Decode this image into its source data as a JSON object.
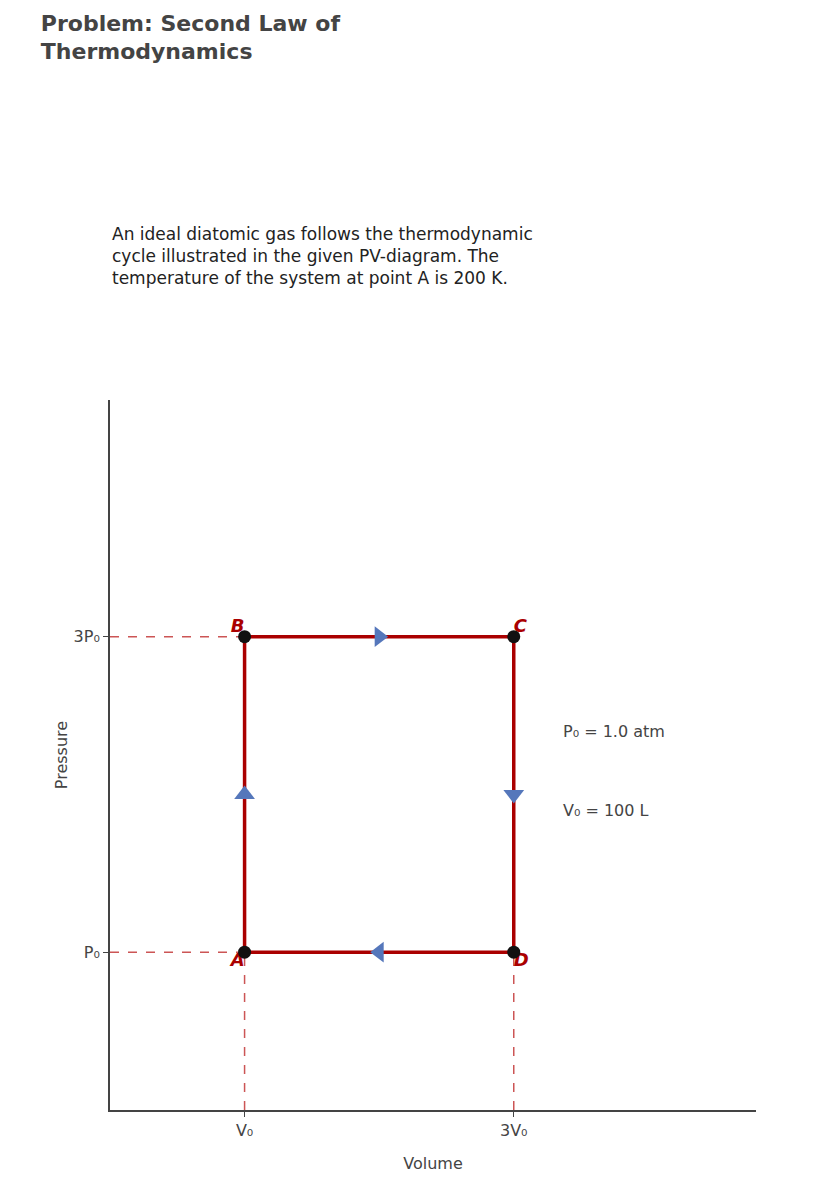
{
  "chart_data": {
    "type": "line",
    "title": [
      "Problem: Second Law of",
      "Thermodynamics"
    ],
    "subtitle": [
      "An ideal diatomic gas follows the thermodynamic",
      "cycle illustrated in the given PV-diagram. The",
      "temperature of the system at point A is 200 K."
    ],
    "x_label": "Volume",
    "y_label": "Pressure",
    "xlim": [
      0.0,
      4.8
    ],
    "ylim": [
      0.0,
      4.5
    ],
    "xticks": [
      {
        "value": 1,
        "label": "V₀"
      },
      {
        "value": 3,
        "label": "3V₀"
      }
    ],
    "yticks": [
      {
        "value": 1,
        "label": "P₀"
      },
      {
        "value": 3,
        "label": "3P₀"
      }
    ],
    "grid": false,
    "series": [
      {
        "type": "line",
        "x": [
          0,
          1
        ],
        "y": [
          1,
          1
        ],
        "color": "#cc5555",
        "line_style": "dashed"
      },
      {
        "type": "line",
        "x": [
          0,
          3
        ],
        "y": [
          3,
          3
        ],
        "color": "#cc5555",
        "line_style": "dashed"
      },
      {
        "type": "line",
        "x": [
          1,
          1
        ],
        "y": [
          0,
          1
        ],
        "color": "#cc5555",
        "line_style": "dashed"
      },
      {
        "type": "line",
        "x": [
          3,
          3
        ],
        "y": [
          0,
          1
        ],
        "color": "#cc5555",
        "line_style": "dashed"
      },
      {
        "type": "line",
        "x": [
          1,
          1,
          3,
          3,
          1
        ],
        "y": [
          1,
          3,
          3,
          1,
          1
        ],
        "labels": [
          "A",
          "B",
          "C",
          "D",
          null
        ],
        "color": "#aa0000",
        "line_style": "solid"
      },
      {
        "type": "scatter",
        "x": [
          1
        ],
        "y": [
          2
        ],
        "color": "#5577bb",
        "marker": "triangle-up"
      },
      {
        "type": "scatter",
        "x": [
          2
        ],
        "y": [
          3
        ],
        "color": "#5577bb",
        "marker": "triangle-right"
      },
      {
        "type": "scatter",
        "x": [
          3
        ],
        "y": [
          2
        ],
        "color": "#5577bb",
        "marker": "triangle-down"
      },
      {
        "type": "scatter",
        "x": [
          2
        ],
        "y": [
          1
        ],
        "color": "#5577bb",
        "marker": "triangle-left"
      },
      {
        "type": "scatter",
        "x": [
          1,
          1,
          3,
          3
        ],
        "y": [
          1,
          3,
          3,
          1
        ],
        "color": "#111111",
        "marker": "circle"
      }
    ],
    "annotations": [
      {
        "text": "P₀ = 1.0 atm",
        "x": 3.35,
        "y": 2.4
      },
      {
        "text": "V₀ = 100 L",
        "x": 3.35,
        "y": 1.9
      }
    ]
  }
}
